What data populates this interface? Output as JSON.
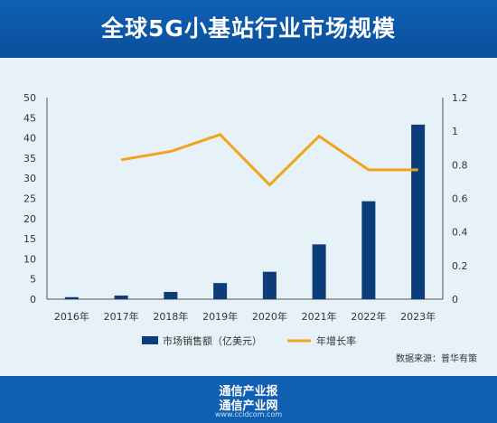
{
  "title": "全球5G小基站行业市场规模",
  "source": "数据来源：普华有策",
  "footer": {
    "line1": "通信产业报",
    "line2": "通信产业网",
    "line3": "www.ccidcom.com"
  },
  "colors": {
    "header": "#0f5fb3",
    "bar": "#0d3d78",
    "line": "#f0a41e",
    "background": "#e6f2f8"
  },
  "chart_data": {
    "type": "bar",
    "categories": [
      "2016年",
      "2017年",
      "2018年",
      "2019年",
      "2020年",
      "2021年",
      "2022年",
      "2023年"
    ],
    "series": [
      {
        "name": "市场销售额（亿美元）",
        "type": "bar",
        "axis": "left",
        "values": [
          0.5,
          0.9,
          1.8,
          4.0,
          6.8,
          13.6,
          24.3,
          43.3
        ]
      },
      {
        "name": "年增长率",
        "type": "line",
        "axis": "right",
        "values": [
          null,
          0.83,
          0.88,
          0.98,
          0.68,
          0.97,
          0.77,
          0.77
        ]
      }
    ],
    "y_left": {
      "min": 0,
      "max": 50,
      "ticks": [
        "0",
        "5",
        "10",
        "15",
        "20",
        "25",
        "30",
        "35",
        "40",
        "45",
        "50"
      ]
    },
    "y_right": {
      "min": 0,
      "max": 1.2,
      "ticks": [
        "0",
        "0.2",
        "0.4",
        "0.6",
        "0.8",
        "1",
        "1.2"
      ]
    },
    "legend_position": "bottom",
    "grid": false
  }
}
